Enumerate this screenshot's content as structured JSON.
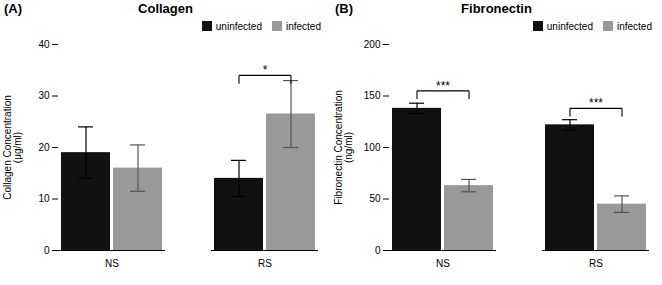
{
  "chart_data": [
    {
      "type": "bar",
      "panel_label": "(A)",
      "title": "Collagen",
      "ylabel": "Collagen Concentration\n(μg/ml)",
      "categories": [
        "NS",
        "RS"
      ],
      "series": [
        {
          "name": "uninfected",
          "color": "#111111",
          "values": [
            19.0,
            14.0
          ],
          "errors": [
            5.0,
            3.5
          ]
        },
        {
          "name": "infected",
          "color": "#999999",
          "values": [
            16.0,
            26.5
          ],
          "errors": [
            4.5,
            6.5
          ]
        }
      ],
      "ylim": [
        0,
        40
      ],
      "yticks": [
        0,
        10,
        20,
        30,
        40
      ],
      "legend": "upper right",
      "annotations": [
        {
          "text": "*",
          "category": "RS",
          "from": "uninfected",
          "to": "infected",
          "y": 34.0
        }
      ]
    },
    {
      "type": "bar",
      "panel_label": "(B)",
      "title": "Fibronectin",
      "ylabel": "Fibronectin Concentration\n(ng/ml)",
      "categories": [
        "NS",
        "RS"
      ],
      "series": [
        {
          "name": "uninfected",
          "color": "#111111",
          "values": [
            138.0,
            122.0
          ],
          "errors": [
            5.0,
            5.0
          ]
        },
        {
          "name": "infected",
          "color": "#999999",
          "values": [
            63.0,
            45.0
          ],
          "errors": [
            6.0,
            8.0
          ]
        }
      ],
      "ylim": [
        0,
        200
      ],
      "yticks": [
        0,
        50,
        100,
        150,
        200
      ],
      "legend": "upper right",
      "annotations": [
        {
          "text": "***",
          "category": "NS",
          "from": "uninfected",
          "to": "infected",
          "y": 155
        },
        {
          "text": "***",
          "category": "RS",
          "from": "uninfected",
          "to": "infected",
          "y": 138
        }
      ]
    }
  ]
}
